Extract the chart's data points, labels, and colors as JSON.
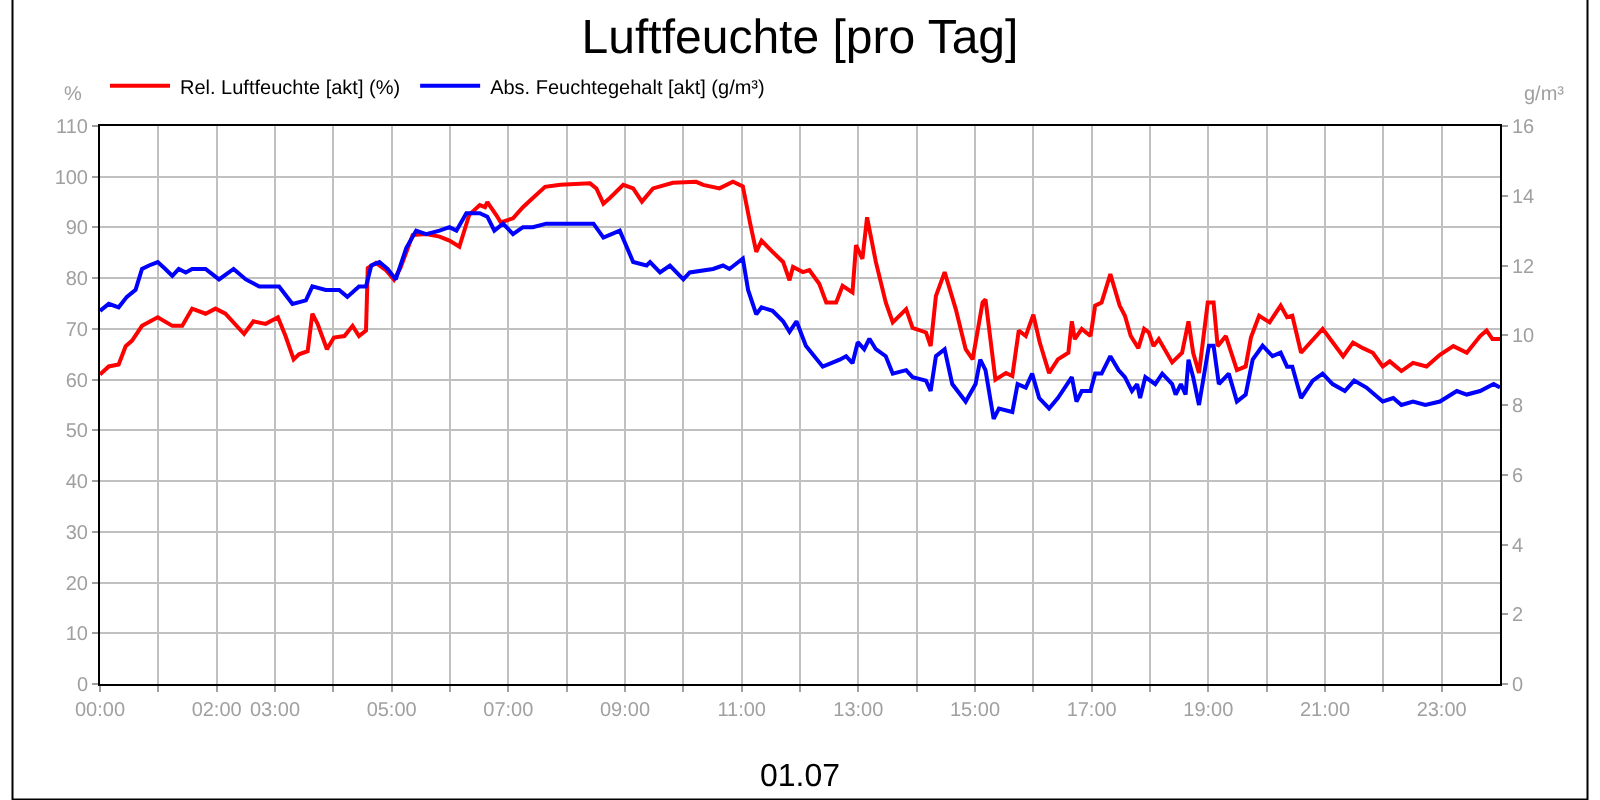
{
  "chart_data": {
    "type": "line",
    "title": "Luftfeuchte [pro Tag]",
    "xlabel": "01.07",
    "ylabel": "%",
    "y2label": "g/m³",
    "xlim": [
      0,
      24
    ],
    "xticks": [
      {
        "value": 0,
        "label": "00:00"
      },
      {
        "value": 1,
        "label": null
      },
      {
        "value": 2,
        "label": "02:00"
      },
      {
        "value": 3,
        "label": "03:00"
      },
      {
        "value": 4,
        "label": null
      },
      {
        "value": 5,
        "label": "05:00"
      },
      {
        "value": 6,
        "label": null
      },
      {
        "value": 7,
        "label": "07:00"
      },
      {
        "value": 8,
        "label": null
      },
      {
        "value": 9,
        "label": "09:00"
      },
      {
        "value": 10,
        "label": null
      },
      {
        "value": 11,
        "label": "11:00"
      },
      {
        "value": 12,
        "label": null
      },
      {
        "value": 13,
        "label": "13:00"
      },
      {
        "value": 14,
        "label": null
      },
      {
        "value": 15,
        "label": "15:00"
      },
      {
        "value": 16,
        "label": null
      },
      {
        "value": 17,
        "label": "17:00"
      },
      {
        "value": 18,
        "label": null
      },
      {
        "value": 19,
        "label": "19:00"
      },
      {
        "value": 20,
        "label": null
      },
      {
        "value": 21,
        "label": "21:00"
      },
      {
        "value": 22,
        "label": null
      },
      {
        "value": 23,
        "label": "23:00"
      }
    ],
    "ylim": [
      0,
      110
    ],
    "yticks": [
      0,
      10,
      20,
      30,
      40,
      50,
      60,
      70,
      80,
      90,
      100,
      110
    ],
    "y2lim": [
      0,
      16
    ],
    "y2ticks": [
      0,
      2,
      4,
      6,
      8,
      10,
      12,
      14,
      16
    ],
    "grid": true,
    "legend": "top left",
    "marker": "none",
    "line_style": "solid",
    "series": [
      {
        "name": "Rel. Luftfeuchte [akt] (%)",
        "color": "#ff0000",
        "x": [
          0,
          0.15,
          0.32,
          0.44,
          0.55,
          0.72,
          0.99,
          1.24,
          1.41,
          1.58,
          1.81,
          1.98,
          2.15,
          2.47,
          2.63,
          2.84,
          3.05,
          3.18,
          3.32,
          3.41,
          3.56,
          3.64,
          3.73,
          3.89,
          4.01,
          4.19,
          4.33,
          4.44,
          4.56,
          4.59,
          4.73,
          4.9,
          5.04,
          5.15,
          5.36,
          5.59,
          5.82,
          5.99,
          6.16,
          6.33,
          6.51,
          6.6,
          6.64,
          6.79,
          6.87,
          7.08,
          7.25,
          7.42,
          7.63,
          7.89,
          8.4,
          8.51,
          8.63,
          8.74,
          8.97,
          9.14,
          9.29,
          9.48,
          9.82,
          10.22,
          10.34,
          10.62,
          10.85,
          11.02,
          11.14,
          11.25,
          11.34,
          11.53,
          11.71,
          11.82,
          11.88,
          12.05,
          12.16,
          12.33,
          12.45,
          12.62,
          12.73,
          12.9,
          12.96,
          13.07,
          13.15,
          13.3,
          13.47,
          13.59,
          13.82,
          13.93,
          14.16,
          14.24,
          14.33,
          14.48,
          14.67,
          14.84,
          14.96,
          15.13,
          15.18,
          15.35,
          15.53,
          15.64,
          15.75,
          15.87,
          16.0,
          16.11,
          16.27,
          16.42,
          16.6,
          16.66,
          16.71,
          16.83,
          16.98,
          17.06,
          17.17,
          17.32,
          17.48,
          17.57,
          17.67,
          17.8,
          17.9,
          17.98,
          18.06,
          18.15,
          18.38,
          18.55,
          18.66,
          18.74,
          18.84,
          18.99,
          19.09,
          19.16,
          19.3,
          19.49,
          19.64,
          19.73,
          19.87,
          20.05,
          20.24,
          20.35,
          20.44,
          20.59,
          20.96,
          21.31,
          21.48,
          21.65,
          21.82,
          21.99,
          22.11,
          22.31,
          22.51,
          22.74,
          22.97,
          23.2,
          23.43,
          23.66,
          23.77,
          23.87,
          24.0
        ],
        "values": [
          61,
          62.6,
          63,
          66.6,
          67.7,
          70.6,
          72.3,
          70.6,
          70.6,
          74,
          73,
          74,
          73,
          69,
          71.5,
          71,
          72.3,
          68.6,
          64,
          65,
          65.6,
          73,
          71,
          66,
          68.3,
          68.6,
          70.6,
          68.6,
          69.7,
          82,
          83,
          81.6,
          79.7,
          82,
          88.5,
          88.7,
          88.2,
          87.4,
          86.2,
          92.5,
          94.4,
          94,
          95,
          92.5,
          91,
          91.8,
          94,
          95.8,
          98,
          98.4,
          98.7,
          97.7,
          94.7,
          95.8,
          98.4,
          97.7,
          95.1,
          97.7,
          98.8,
          99,
          98.4,
          97.7,
          99,
          98.1,
          91.1,
          85.2,
          87.4,
          85.2,
          83.2,
          79.6,
          82.2,
          81.2,
          81.6,
          78.9,
          75.2,
          75.2,
          78.5,
          77.2,
          86.5,
          83.8,
          92,
          83.2,
          75.2,
          71.3,
          73.9,
          70.2,
          69.3,
          66.6,
          76.5,
          81.2,
          73.9,
          66,
          64,
          75.2,
          75.8,
          60,
          61.3,
          60.7,
          69.7,
          68.6,
          72.8,
          67.3,
          61.3,
          64,
          65.3,
          71.5,
          68,
          70,
          68.6,
          74.6,
          75.2,
          80.8,
          74.6,
          72.6,
          68.6,
          66.2,
          70,
          69.3,
          66.6,
          68,
          63.4,
          65.3,
          71.5,
          65.3,
          61.3,
          75.2,
          75.2,
          66.6,
          68.6,
          61.9,
          62.6,
          68.3,
          72.6,
          71.3,
          74.6,
          72.3,
          72.6,
          65.3,
          70,
          64.6,
          67.3,
          66.2,
          65.3,
          62.6,
          63.6,
          61.7,
          63.3,
          62.6,
          64.9,
          66.6,
          65.3,
          68.6,
          69.7,
          68,
          68
        ]
      },
      {
        "name": "Abs. Feuchtegehalt [akt] (g/m³)",
        "color": "#0000ff",
        "axis": "y2",
        "x": [
          0,
          0.15,
          0.32,
          0.46,
          0.61,
          0.72,
          0.84,
          0.99,
          1.12,
          1.24,
          1.35,
          1.47,
          1.58,
          1.81,
          2.04,
          2.29,
          2.5,
          2.73,
          3.07,
          3.3,
          3.53,
          3.64,
          3.87,
          4.1,
          4.24,
          4.44,
          4.56,
          4.65,
          4.79,
          4.93,
          5.07,
          5.25,
          5.42,
          5.59,
          5.82,
          5.99,
          6.11,
          6.28,
          6.51,
          6.64,
          6.76,
          6.91,
          7.08,
          7.25,
          7.42,
          7.65,
          7.89,
          8.34,
          8.46,
          8.63,
          8.91,
          9.14,
          9.37,
          9.43,
          9.6,
          9.77,
          10.0,
          10.11,
          10.51,
          10.68,
          10.79,
          11.02,
          11.11,
          11.25,
          11.34,
          11.53,
          11.71,
          11.82,
          11.94,
          12.1,
          12.39,
          12.68,
          12.79,
          12.9,
          12.99,
          13.1,
          13.19,
          13.3,
          13.47,
          13.59,
          13.82,
          13.93,
          14.16,
          14.24,
          14.33,
          14.48,
          14.61,
          14.84,
          15.01,
          15.09,
          15.18,
          15.32,
          15.41,
          15.64,
          15.73,
          15.87,
          15.98,
          16.1,
          16.27,
          16.42,
          16.66,
          16.74,
          16.83,
          16.98,
          17.06,
          17.17,
          17.32,
          17.46,
          17.57,
          17.69,
          17.78,
          17.83,
          17.92,
          18.09,
          18.21,
          18.38,
          18.44,
          18.53,
          18.61,
          18.66,
          18.74,
          18.84,
          19.01,
          19.09,
          19.18,
          19.35,
          19.49,
          19.64,
          19.76,
          19.93,
          20.1,
          20.24,
          20.35,
          20.44,
          20.59,
          20.79,
          20.96,
          21.13,
          21.34,
          21.5,
          21.71,
          21.99,
          22.17,
          22.31,
          22.51,
          22.72,
          22.97,
          23.26,
          23.43,
          23.66,
          23.89,
          24.0
        ],
        "values": [
          10.7,
          10.9,
          10.8,
          11.1,
          11.3,
          11.9,
          12.0,
          12.1,
          11.9,
          11.7,
          11.9,
          11.8,
          11.9,
          11.9,
          11.6,
          11.9,
          11.6,
          11.4,
          11.4,
          10.9,
          11.0,
          11.4,
          11.3,
          11.3,
          11.1,
          11.4,
          11.4,
          12.0,
          12.1,
          11.9,
          11.6,
          12.5,
          13.0,
          12.9,
          13.0,
          13.1,
          13.0,
          13.5,
          13.5,
          13.4,
          13.0,
          13.2,
          12.9,
          13.1,
          13.1,
          13.2,
          13.2,
          13.2,
          13.2,
          12.8,
          13.0,
          12.1,
          12.0,
          12.1,
          11.8,
          12.0,
          11.6,
          11.8,
          11.9,
          12.0,
          11.9,
          12.2,
          11.3,
          10.6,
          10.8,
          10.7,
          10.4,
          10.1,
          10.4,
          9.7,
          9.1,
          9.3,
          9.4,
          9.2,
          9.8,
          9.6,
          9.9,
          9.6,
          9.4,
          8.9,
          9.0,
          8.8,
          8.7,
          8.4,
          9.4,
          9.6,
          8.6,
          8.1,
          8.6,
          9.3,
          9.0,
          7.6,
          7.9,
          7.8,
          8.6,
          8.5,
          8.9,
          8.2,
          7.9,
          8.2,
          8.8,
          8.1,
          8.4,
          8.4,
          8.9,
          8.9,
          9.4,
          9.0,
          8.8,
          8.4,
          8.6,
          8.2,
          8.8,
          8.6,
          8.9,
          8.6,
          8.3,
          8.6,
          8.3,
          9.3,
          8.8,
          8.0,
          9.7,
          9.7,
          8.6,
          8.9,
          8.1,
          8.3,
          9.3,
          9.7,
          9.4,
          9.5,
          9.1,
          9.1,
          8.2,
          8.7,
          8.9,
          8.6,
          8.4,
          8.7,
          8.5,
          8.1,
          8.2,
          8.0,
          8.1,
          8.0,
          8.1,
          8.4,
          8.3,
          8.4,
          8.6,
          8.5
        ]
      }
    ]
  }
}
